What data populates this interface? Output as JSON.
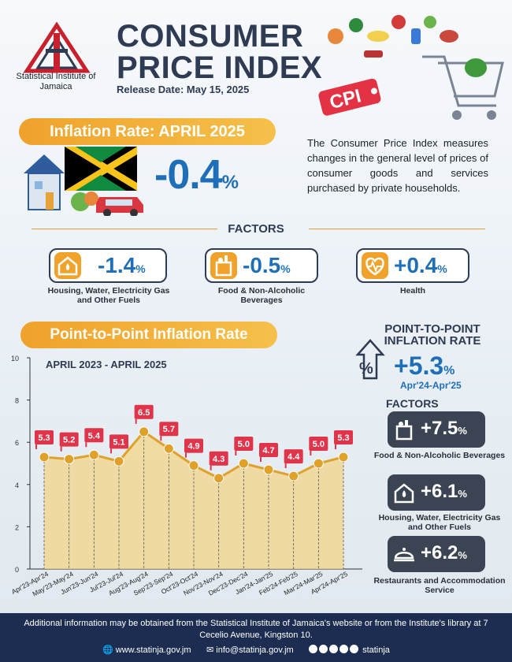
{
  "header": {
    "org_name": "Statistical Institute of Jamaica",
    "title_line1": "CONSUMER",
    "title_line2": "PRICE INDEX",
    "release_date": "Release Date: May 15, 2025",
    "cpi_tag": "CPI"
  },
  "inflation": {
    "banner": "Inflation Rate: APRIL 2025",
    "value": "-0.4",
    "unit": "%",
    "description": "The Consumer Price Index measures changes in the general level of prices of consumer goods and services purchased by private households."
  },
  "factors": {
    "heading": "FACTORS",
    "items": [
      {
        "value": "-1.4",
        "unit": "%",
        "label": "Housing, Water, Electricity Gas and Other Fuels",
        "icon": "house-utilities-icon"
      },
      {
        "value": "-0.5",
        "unit": "%",
        "label": "Food & Non-Alcoholic Beverages",
        "icon": "grocery-bag-icon"
      },
      {
        "value": "+0.4",
        "unit": "%",
        "label": "Health",
        "icon": "heartbeat-icon"
      }
    ]
  },
  "p2p": {
    "banner": "Point-to-Point Inflation Rate",
    "heading_line1": "POINT-TO-POINT",
    "heading_line2": "INFLATION RATE",
    "value": "+5.3",
    "unit": "%",
    "period": "Apr'24-Apr'25",
    "factors_heading": "FACTORS",
    "factors": [
      {
        "value": "+7.5",
        "unit": "%",
        "label": "Food & Non-Alcoholic Beverages",
        "icon": "grocery-bag-icon"
      },
      {
        "value": "+6.1",
        "unit": "%",
        "label": "Housing, Water, Electricity Gas and Other Fuels",
        "icon": "house-utilities-icon"
      },
      {
        "value": "+6.2",
        "unit": "%",
        "label": "Restaurants and Accommodation Service",
        "icon": "food-cloche-icon"
      }
    ]
  },
  "chart_data": {
    "type": "line",
    "title": "APRIL 2023 - APRIL 2025",
    "xlabel": "",
    "ylabel": "",
    "ylim": [
      0,
      10
    ],
    "yticks": [
      0,
      2,
      4,
      6,
      8,
      10
    ],
    "categories": [
      "Apr'23-Apr'24",
      "May'23-May'24",
      "Jun'23-Jun'24",
      "Jul'23-Jul'24",
      "Aug'23-Aug'24",
      "Sep'23-Sep'24",
      "Oct'23-Oct'24",
      "Nov'23-Nov'24",
      "Dec'23-Dec'24",
      "Jan'24-Jan'25",
      "Feb'24-Feb'25",
      "Mar'24-Mar'25",
      "Apr'24-Apr'25"
    ],
    "series": [
      {
        "values": [
          5.3,
          5.2,
          5.4,
          5.1,
          6.5,
          5.7,
          4.9,
          4.3,
          5.0,
          4.7,
          4.4,
          5.0,
          5.3
        ]
      }
    ],
    "grid": false,
    "colors": {
      "line": "#e0a12a",
      "fill": "#f3d488",
      "label_bg": "#e0344a"
    }
  },
  "footer": {
    "text": "Additional information may be obtained from the Statistical Institute of Jamaica's website or from the Institute's library at 7 Cecelio Avenue, Kingston 10.",
    "website": "www.statinja.gov.jm",
    "email": "info@statinja.gov.jm",
    "social": "statinja"
  },
  "colors": {
    "accent": "#f0a22b",
    "primary": "#1f6fb8",
    "dark": "#2f3b52",
    "footer": "#1d2d52"
  }
}
